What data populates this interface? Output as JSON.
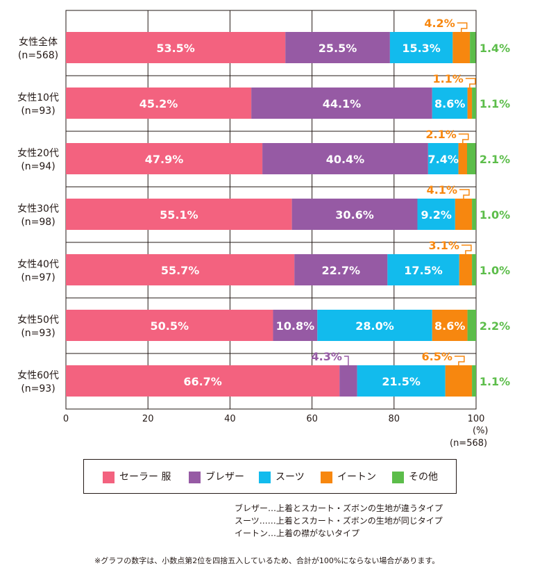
{
  "chart_data": {
    "type": "bar",
    "orientation": "horizontal",
    "stacked": true,
    "categories": [
      [
        "女性全体",
        "(n=568)"
      ],
      [
        "女性10代",
        "(n=93)"
      ],
      [
        "女性20代",
        "(n=94)"
      ],
      [
        "女性30代",
        "(n=98)"
      ],
      [
        "女性40代",
        "(n=97)"
      ],
      [
        "女性50代",
        "(n=93)"
      ],
      [
        "女性60代",
        "(n=93)"
      ]
    ],
    "series": [
      {
        "name": "セーラー服",
        "color": "#f3627f",
        "values": [
          53.5,
          45.2,
          47.9,
          55.1,
          55.7,
          50.5,
          66.7
        ]
      },
      {
        "name": "ブレザー",
        "color": "#965aa4",
        "values": [
          25.5,
          44.1,
          40.4,
          30.6,
          22.7,
          10.8,
          4.3
        ]
      },
      {
        "name": "スーツ",
        "color": "#12bbed",
        "values": [
          15.3,
          8.6,
          7.4,
          9.2,
          17.5,
          28.0,
          21.5
        ]
      },
      {
        "name": "イートン",
        "color": "#f7870f",
        "values": [
          4.2,
          1.1,
          2.1,
          4.1,
          3.1,
          8.6,
          6.5
        ]
      },
      {
        "name": "その他",
        "color": "#5cbd4a",
        "values": [
          1.4,
          1.1,
          2.1,
          1.0,
          1.0,
          2.2,
          1.1
        ]
      }
    ],
    "xlim": [
      0,
      100
    ],
    "xticks": [
      0,
      20,
      40,
      60,
      80,
      100
    ],
    "xlabel": "(%)",
    "xlabel_sub": "(n=568)",
    "grid": true,
    "legend_position": "bottom"
  },
  "legend": [
    "セーラー 服",
    "ブレザー",
    "スーツ",
    "イートン",
    "その他"
  ],
  "notes": [
    "ブレザー…上着とスカート・ズボンの生地が違うタイプ",
    "スーツ……上着とスカート・ズボンの生地が同じタイプ",
    "イートン…上着の襟がないタイプ"
  ],
  "footnote": "※グラフの数字は、小数点第2位を四捨五入しているため、合計が100%にならない場合があります。"
}
